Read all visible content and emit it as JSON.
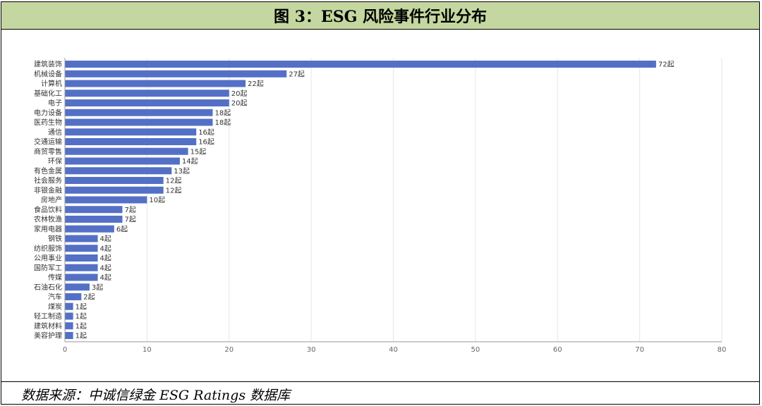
{
  "header": {
    "title": "图 3：ESG 风险事件行业分布"
  },
  "footer": {
    "source": "数据来源：中诚信绿金 ESG Ratings 数据库"
  },
  "colors": {
    "bar": "#5470c6",
    "title_bg": "#c5d7a0",
    "grid": "#e6e6e6",
    "axis": "#999999",
    "label": "#333333"
  },
  "chart_data": {
    "type": "bar",
    "orientation": "horizontal",
    "categories": [
      "建筑装饰",
      "机械设备",
      "计算机",
      "基础化工",
      "电子",
      "电力设备",
      "医药生物",
      "通信",
      "交通运输",
      "商贸零售",
      "环保",
      "有色金属",
      "社会服务",
      "非银金融",
      "房地产",
      "食品饮料",
      "农林牧渔",
      "家用电器",
      "钢铁",
      "纺织服饰",
      "公用事业",
      "国防军工",
      "传媒",
      "石油石化",
      "汽车",
      "煤炭",
      "轻工制造",
      "建筑材料",
      "美容护理"
    ],
    "values": [
      72,
      27,
      22,
      20,
      20,
      18,
      18,
      16,
      16,
      15,
      14,
      13,
      12,
      12,
      10,
      7,
      7,
      6,
      4,
      4,
      4,
      4,
      4,
      3,
      2,
      1,
      1,
      1,
      1
    ],
    "value_suffix": "起",
    "xlim": [
      0,
      80
    ],
    "xticks": [
      0,
      10,
      20,
      30,
      40,
      50,
      60,
      70,
      80
    ],
    "grid": true
  }
}
